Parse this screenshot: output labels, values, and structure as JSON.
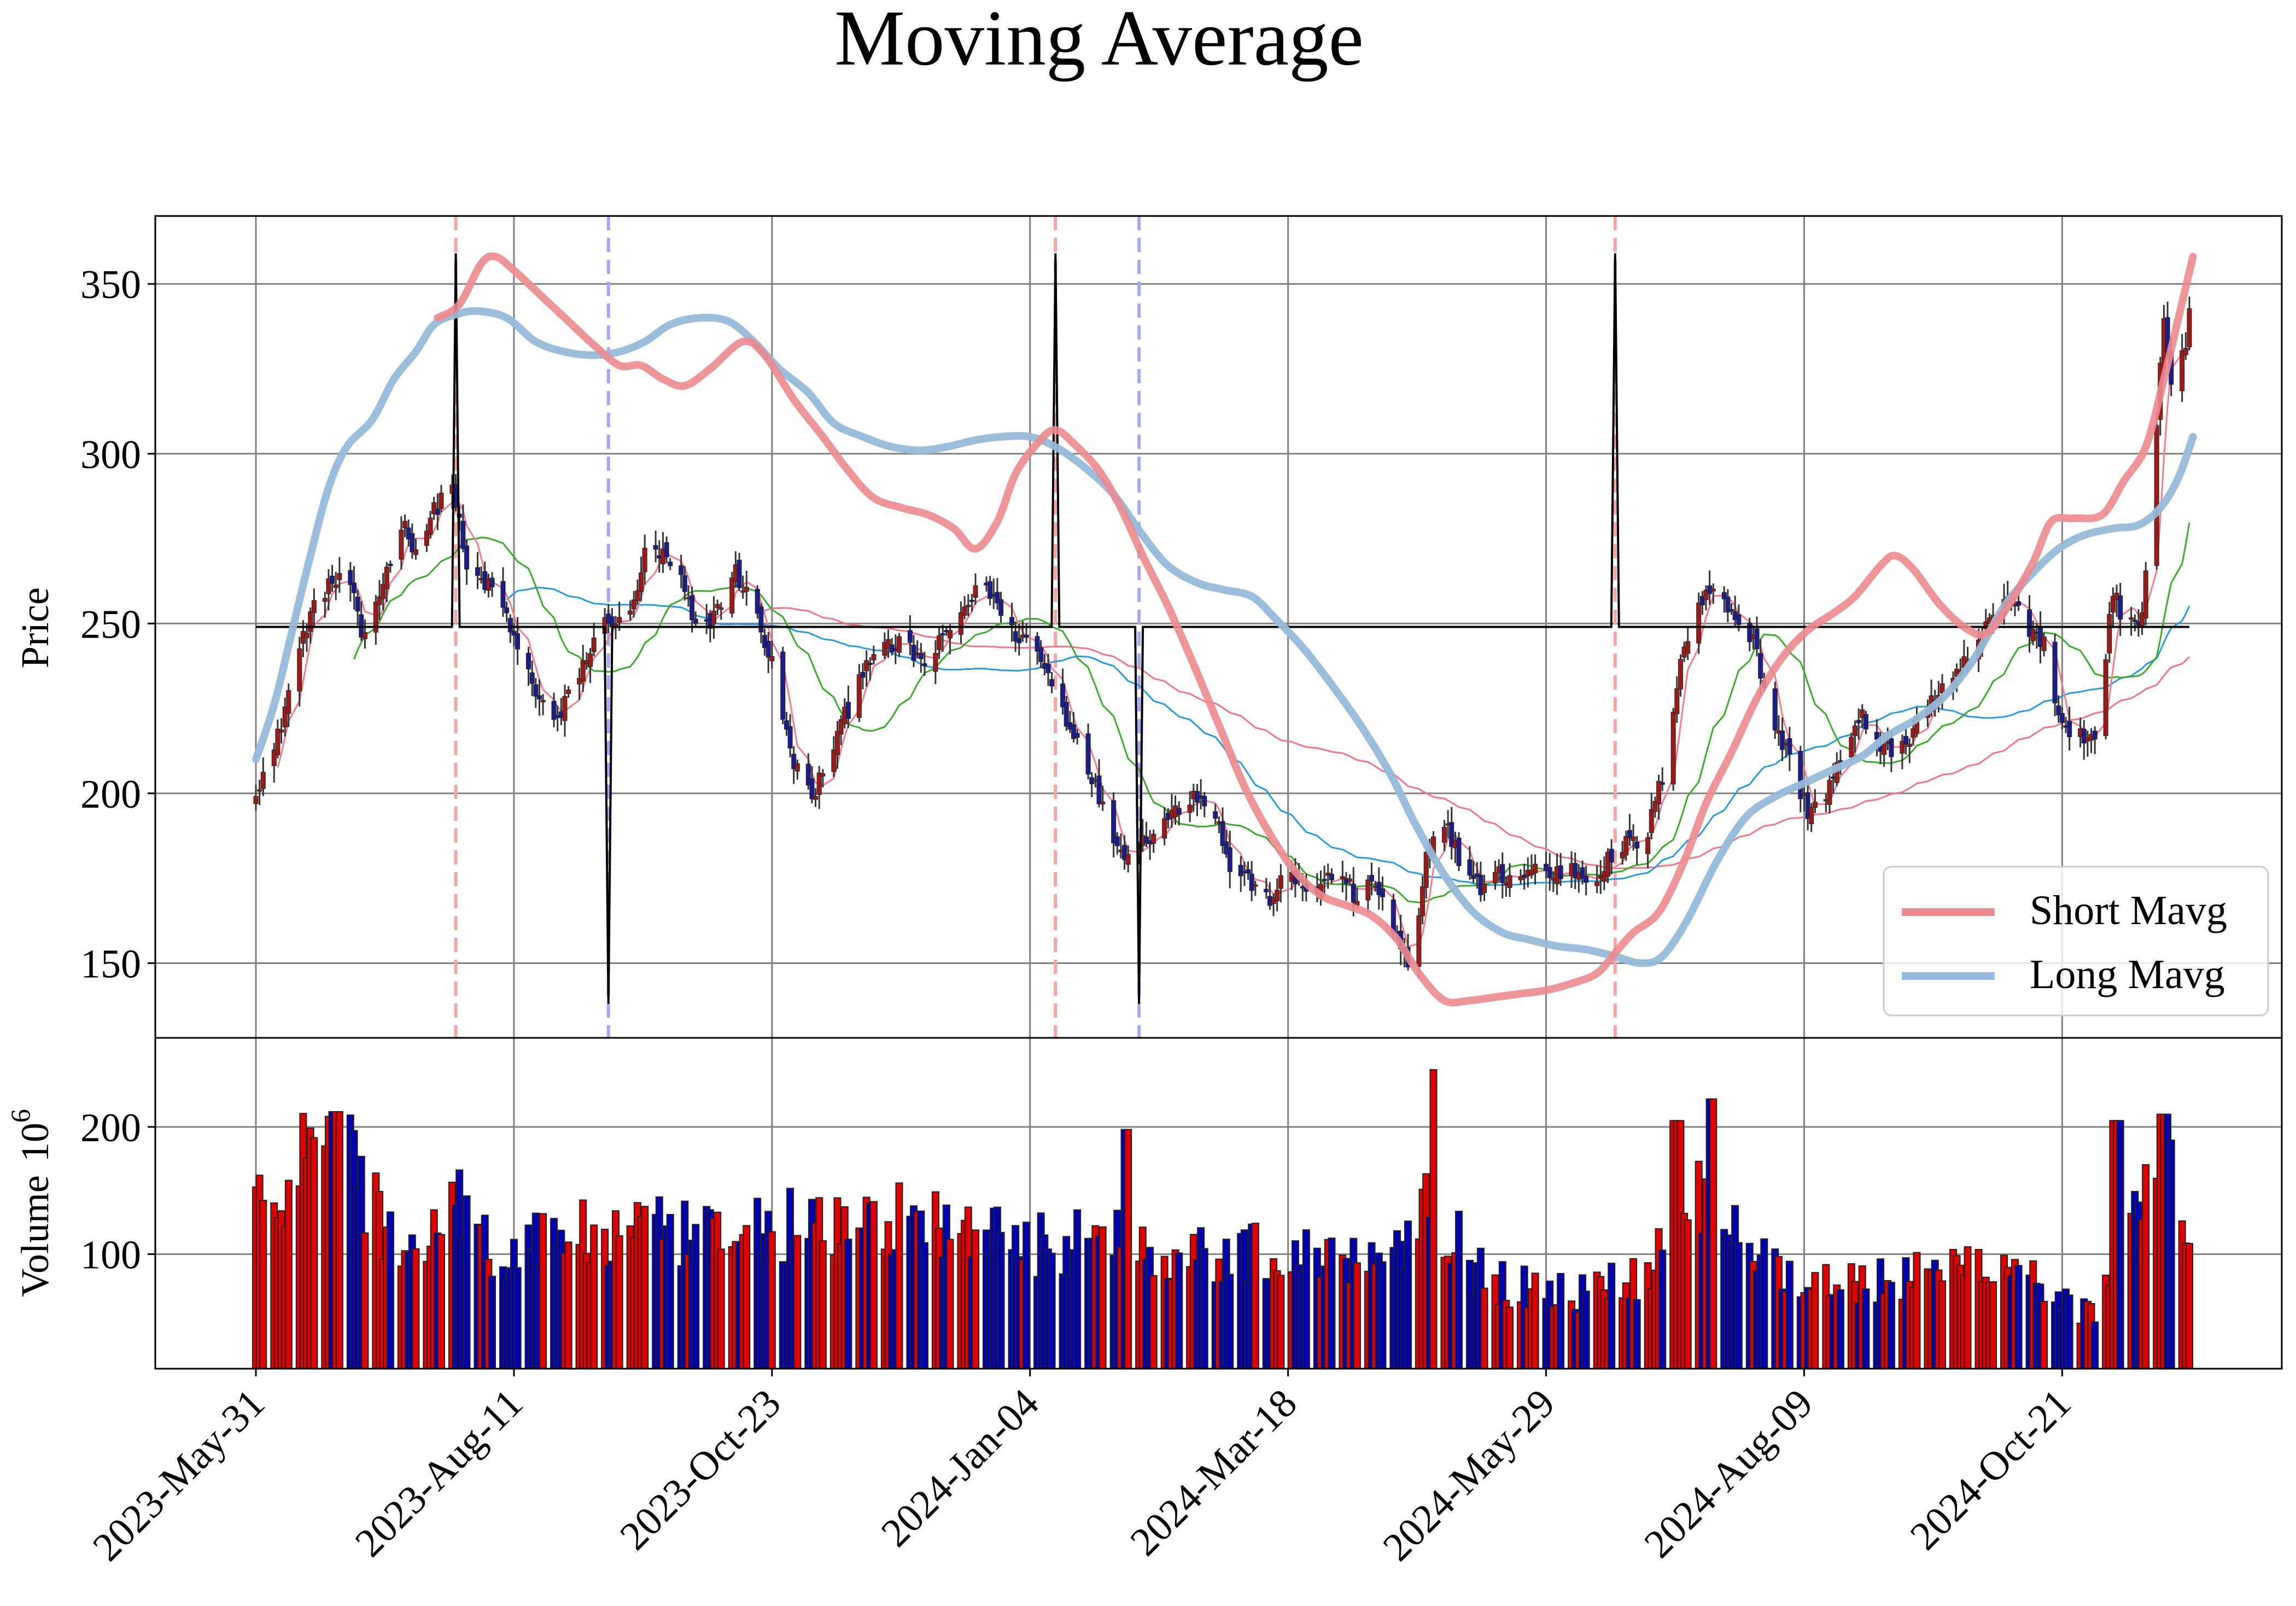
{
  "chart_data": {
    "type": "candlestick",
    "title": "Moving Average",
    "price_panel": {
      "ylabel": "Price",
      "ylim": [
        128,
        370
      ],
      "yticks": [
        150,
        200,
        250,
        300,
        350
      ],
      "grid": true,
      "legend": {
        "position": "lower-right",
        "entries": [
          "Short Mavg",
          "Long Mavg"
        ]
      }
    },
    "volume_panel": {
      "ylabel": "Volume",
      "exponent_label": "10",
      "exponent_power": "6",
      "ylim": [
        10,
        270
      ],
      "yticks": [
        100,
        200
      ],
      "grid": true
    },
    "x_axis": {
      "start_date": "2023-05-31",
      "end_date": "2024-11-13",
      "tick_labels": [
        "2023-May-31",
        "2023-Aug-11",
        "2023-Oct-23",
        "2024-Jan-04",
        "2024-Mar-18",
        "2024-May-29",
        "2024-Aug-09",
        "2024-Oct-21"
      ]
    },
    "close_anchors": [
      [
        "2023-05-31",
        202
      ],
      [
        "2023-06-05",
        212
      ],
      [
        "2023-06-09",
        230
      ],
      [
        "2023-06-14",
        250
      ],
      [
        "2023-06-20",
        262
      ],
      [
        "2023-06-26",
        262
      ],
      [
        "2023-06-29",
        245
      ],
      [
        "2023-07-05",
        262
      ],
      [
        "2023-07-10",
        280
      ],
      [
        "2023-07-14",
        272
      ],
      [
        "2023-07-20",
        285
      ],
      [
        "2023-07-24",
        292
      ],
      [
        "2023-07-28",
        265
      ],
      [
        "2023-08-02",
        262
      ],
      [
        "2023-08-07",
        255
      ],
      [
        "2023-08-11",
        242
      ],
      [
        "2023-08-17",
        228
      ],
      [
        "2023-08-22",
        220
      ],
      [
        "2023-08-26",
        232
      ],
      [
        "2023-08-31",
        242
      ],
      [
        "2023-09-05",
        252
      ],
      [
        "2023-09-10",
        248
      ],
      [
        "2023-09-15",
        270
      ],
      [
        "2023-09-20",
        270
      ],
      [
        "2023-09-25",
        262
      ],
      [
        "2023-09-30",
        245
      ],
      [
        "2023-10-05",
        255
      ],
      [
        "2023-10-10",
        265
      ],
      [
        "2023-10-15",
        255
      ],
      [
        "2023-10-20",
        238
      ],
      [
        "2023-10-25",
        212
      ],
      [
        "2023-10-31",
        198
      ],
      [
        "2023-11-05",
        212
      ],
      [
        "2023-11-10",
        225
      ],
      [
        "2023-11-15",
        240
      ],
      [
        "2023-11-20",
        242
      ],
      [
        "2023-11-25",
        244
      ],
      [
        "2023-12-01",
        238
      ],
      [
        "2023-12-06",
        245
      ],
      [
        "2023-12-12",
        255
      ],
      [
        "2023-12-18",
        262
      ],
      [
        "2023-12-24",
        248
      ],
      [
        "2023-12-30",
        245
      ],
      [
        "2024-01-04",
        235
      ],
      [
        "2024-01-09",
        222
      ],
      [
        "2024-01-14",
        212
      ],
      [
        "2024-01-19",
        195
      ],
      [
        "2024-01-24",
        183
      ],
      [
        "2024-01-29",
        185
      ],
      [
        "2024-02-03",
        190
      ],
      [
        "2024-02-08",
        195
      ],
      [
        "2024-02-13",
        200
      ],
      [
        "2024-02-18",
        198
      ],
      [
        "2024-02-23",
        178
      ],
      [
        "2024-02-28",
        175
      ],
      [
        "2024-03-04",
        168
      ],
      [
        "2024-03-09",
        175
      ],
      [
        "2024-03-14",
        173
      ],
      [
        "2024-03-19",
        172
      ],
      [
        "2024-03-24",
        178
      ],
      [
        "2024-03-29",
        168
      ],
      [
        "2024-04-03",
        174
      ],
      [
        "2024-04-08",
        160
      ],
      [
        "2024-04-13",
        145
      ],
      [
        "2024-04-17",
        180
      ],
      [
        "2024-04-22",
        193
      ],
      [
        "2024-04-27",
        178
      ],
      [
        "2024-05-02",
        172
      ],
      [
        "2024-05-07",
        176
      ],
      [
        "2024-05-12",
        175
      ],
      [
        "2024-05-17",
        178
      ],
      [
        "2024-05-22",
        176
      ],
      [
        "2024-05-27",
        178
      ],
      [
        "2024-06-01",
        174
      ],
      [
        "2024-06-06",
        180
      ],
      [
        "2024-06-11",
        185
      ],
      [
        "2024-06-16",
        185
      ],
      [
        "2024-06-21",
        205
      ],
      [
        "2024-06-26",
        240
      ],
      [
        "2024-07-01",
        255
      ],
      [
        "2024-07-06",
        262
      ],
      [
        "2024-07-11",
        252
      ],
      [
        "2024-07-16",
        245
      ],
      [
        "2024-07-21",
        222
      ],
      [
        "2024-07-26",
        210
      ],
      [
        "2024-07-31",
        195
      ],
      [
        "2024-08-05",
        200
      ],
      [
        "2024-08-10",
        212
      ],
      [
        "2024-08-15",
        222
      ],
      [
        "2024-08-20",
        215
      ],
      [
        "2024-08-25",
        210
      ],
      [
        "2024-08-30",
        222
      ],
      [
        "2024-09-04",
        228
      ],
      [
        "2024-09-09",
        232
      ],
      [
        "2024-09-14",
        242
      ],
      [
        "2024-09-19",
        250
      ],
      [
        "2024-09-24",
        258
      ],
      [
        "2024-09-29",
        250
      ],
      [
        "2024-10-04",
        245
      ],
      [
        "2024-10-08",
        222
      ],
      [
        "2024-10-13",
        218
      ],
      [
        "2024-10-18",
        215
      ],
      [
        "2024-10-23",
        260
      ],
      [
        "2024-10-27",
        248
      ],
      [
        "2024-10-31",
        252
      ],
      [
        "2024-11-03",
        295
      ],
      [
        "2024-11-06",
        340
      ],
      [
        "2024-11-09",
        315
      ],
      [
        "2024-11-13",
        340
      ]
    ],
    "volume_anchors": [
      [
        "2023-05-31",
        150
      ],
      [
        "2023-06-14",
        170
      ],
      [
        "2023-06-22",
        205
      ],
      [
        "2023-07-05",
        118
      ],
      [
        "2023-07-12",
        100
      ],
      [
        "2023-07-24",
        150
      ],
      [
        "2023-08-06",
        95
      ],
      [
        "2023-08-20",
        118
      ],
      [
        "2023-09-05",
        112
      ],
      [
        "2023-09-20",
        118
      ],
      [
        "2023-10-05",
        108
      ],
      [
        "2023-10-20",
        125
      ],
      [
        "2023-11-05",
        118
      ],
      [
        "2023-11-25",
        130
      ],
      [
        "2023-12-12",
        115
      ],
      [
        "2024-01-04",
        108
      ],
      [
        "2024-01-20",
        115
      ],
      [
        "2024-02-10",
        100
      ],
      [
        "2024-03-05",
        100
      ],
      [
        "2024-03-25",
        98
      ],
      [
        "2024-04-10",
        112
      ],
      [
        "2024-04-18",
        150
      ],
      [
        "2024-05-01",
        85
      ],
      [
        "2024-05-20",
        68
      ],
      [
        "2024-06-04",
        72
      ],
      [
        "2024-06-18",
        90
      ],
      [
        "2024-06-28",
        158
      ],
      [
        "2024-07-12",
        125
      ],
      [
        "2024-07-25",
        82
      ],
      [
        "2024-08-10",
        78
      ],
      [
        "2024-08-25",
        78
      ],
      [
        "2024-09-15",
        95
      ],
      [
        "2024-09-30",
        90
      ],
      [
        "2024-10-12",
        55
      ],
      [
        "2024-10-20",
        60
      ],
      [
        "2024-10-27",
        125
      ],
      [
        "2024-11-03",
        150
      ],
      [
        "2024-11-07",
        180
      ],
      [
        "2024-11-13",
        90
      ]
    ],
    "volume_spikes": [
      [
        "2023-06-22",
        212
      ],
      [
        "2024-01-26",
        198
      ],
      [
        "2024-04-20",
        245
      ],
      [
        "2024-06-25",
        205
      ],
      [
        "2024-07-05",
        222
      ],
      [
        "2024-10-24",
        205
      ],
      [
        "2024-11-06",
        210
      ]
    ],
    "signal_line": {
      "baseline": 249,
      "up_spike": 359,
      "down_spike": 138
    },
    "crossovers": [
      {
        "date": "2023-07-25",
        "kind": "sell",
        "color": "#f4a6a6"
      },
      {
        "date": "2023-09-05",
        "kind": "buy",
        "color": "#a6a6f4"
      },
      {
        "date": "2024-01-06",
        "kind": "sell",
        "color": "#f4a6a6"
      },
      {
        "date": "2024-01-29",
        "kind": "buy",
        "color": "#a6a6f4"
      },
      {
        "date": "2024-06-08",
        "kind": "sell",
        "color": "#f4a6a6"
      }
    ],
    "short_mavg_anchors": [
      [
        "2023-07-20",
        340
      ],
      [
        "2023-07-26",
        344
      ],
      [
        "2023-08-01",
        356
      ],
      [
        "2023-08-05",
        358
      ],
      [
        "2023-08-10",
        354
      ],
      [
        "2023-08-18",
        346
      ],
      [
        "2023-08-24",
        340
      ],
      [
        "2023-09-01",
        332
      ],
      [
        "2023-09-08",
        326
      ],
      [
        "2023-09-14",
        326
      ],
      [
        "2023-09-20",
        322
      ],
      [
        "2023-09-26",
        320
      ],
      [
        "2023-10-03",
        325
      ],
      [
        "2023-10-12",
        333
      ],
      [
        "2023-10-18",
        329
      ],
      [
        "2023-10-26",
        316
      ],
      [
        "2023-11-03",
        305
      ],
      [
        "2023-11-10",
        295
      ],
      [
        "2023-11-17",
        287
      ],
      [
        "2023-11-25",
        284
      ],
      [
        "2023-12-02",
        282
      ],
      [
        "2023-12-09",
        278
      ],
      [
        "2023-12-15",
        272
      ],
      [
        "2023-12-21",
        280
      ],
      [
        "2023-12-26",
        294
      ],
      [
        "2024-01-01",
        303
      ],
      [
        "2024-01-06",
        307
      ],
      [
        "2024-01-12",
        302
      ],
      [
        "2024-01-18",
        295
      ],
      [
        "2024-01-24",
        284
      ],
      [
        "2024-01-30",
        270
      ],
      [
        "2024-02-06",
        255
      ],
      [
        "2024-02-13",
        238
      ],
      [
        "2024-02-20",
        220
      ],
      [
        "2024-02-27",
        202
      ],
      [
        "2024-03-05",
        188
      ],
      [
        "2024-03-12",
        177
      ],
      [
        "2024-03-19",
        170
      ],
      [
        "2024-03-26",
        167
      ],
      [
        "2024-04-02",
        164
      ],
      [
        "2024-04-09",
        157
      ],
      [
        "2024-04-15",
        147
      ],
      [
        "2024-04-22",
        139
      ],
      [
        "2024-04-29",
        139
      ],
      [
        "2024-05-06",
        140
      ],
      [
        "2024-05-13",
        141
      ],
      [
        "2024-05-20",
        142
      ],
      [
        "2024-05-27",
        144
      ],
      [
        "2024-06-03",
        147
      ],
      [
        "2024-06-08",
        153
      ],
      [
        "2024-06-13",
        159
      ],
      [
        "2024-06-20",
        165
      ],
      [
        "2024-06-27",
        180
      ],
      [
        "2024-07-03",
        197
      ],
      [
        "2024-07-10",
        212
      ],
      [
        "2024-07-17",
        228
      ],
      [
        "2024-07-24",
        240
      ],
      [
        "2024-07-31",
        248
      ],
      [
        "2024-08-07",
        253
      ],
      [
        "2024-08-13",
        258
      ],
      [
        "2024-08-20",
        267
      ],
      [
        "2024-08-24",
        270
      ],
      [
        "2024-08-29",
        266
      ],
      [
        "2024-09-05",
        256
      ],
      [
        "2024-09-12",
        249
      ],
      [
        "2024-09-18",
        247
      ],
      [
        "2024-09-24",
        255
      ],
      [
        "2024-10-01",
        268
      ],
      [
        "2024-10-06",
        280
      ],
      [
        "2024-10-12",
        281
      ],
      [
        "2024-10-20",
        282
      ],
      [
        "2024-10-26",
        292
      ],
      [
        "2024-11-01",
        302
      ],
      [
        "2024-11-06",
        322
      ],
      [
        "2024-11-10",
        340
      ],
      [
        "2024-11-14",
        358
      ]
    ],
    "long_mavg_anchors": [
      [
        "2023-05-31",
        210
      ],
      [
        "2023-06-05",
        226
      ],
      [
        "2023-06-10",
        248
      ],
      [
        "2023-06-15",
        270
      ],
      [
        "2023-06-20",
        290
      ],
      [
        "2023-06-25",
        302
      ],
      [
        "2023-07-02",
        310
      ],
      [
        "2023-07-08",
        322
      ],
      [
        "2023-07-14",
        330
      ],
      [
        "2023-07-19",
        338
      ],
      [
        "2023-07-25",
        341
      ],
      [
        "2023-07-31",
        342
      ],
      [
        "2023-08-08",
        340
      ],
      [
        "2023-08-16",
        333
      ],
      [
        "2023-08-24",
        330
      ],
      [
        "2023-09-01",
        329
      ],
      [
        "2023-09-08",
        330
      ],
      [
        "2023-09-15",
        333
      ],
      [
        "2023-09-22",
        338
      ],
      [
        "2023-09-30",
        340
      ],
      [
        "2023-10-08",
        339
      ],
      [
        "2023-10-15",
        333
      ],
      [
        "2023-10-22",
        325
      ],
      [
        "2023-10-30",
        318
      ],
      [
        "2023-11-06",
        309
      ],
      [
        "2023-11-14",
        305
      ],
      [
        "2023-11-22",
        302
      ],
      [
        "2023-11-30",
        301
      ],
      [
        "2023-12-07",
        302
      ],
      [
        "2023-12-15",
        304
      ],
      [
        "2023-12-22",
        305
      ],
      [
        "2023-12-30",
        305
      ],
      [
        "2024-01-06",
        302
      ],
      [
        "2024-01-14",
        296
      ],
      [
        "2024-01-22",
        288
      ],
      [
        "2024-01-30",
        276
      ],
      [
        "2024-02-06",
        267
      ],
      [
        "2024-02-14",
        262
      ],
      [
        "2024-02-21",
        260
      ],
      [
        "2024-02-29",
        258
      ],
      [
        "2024-03-06",
        252
      ],
      [
        "2024-03-14",
        243
      ],
      [
        "2024-03-22",
        232
      ],
      [
        "2024-03-30",
        220
      ],
      [
        "2024-04-07",
        206
      ],
      [
        "2024-04-14",
        191
      ],
      [
        "2024-04-22",
        176
      ],
      [
        "2024-04-30",
        165
      ],
      [
        "2024-05-08",
        159
      ],
      [
        "2024-05-15",
        157
      ],
      [
        "2024-05-23",
        155
      ],
      [
        "2024-05-31",
        154
      ],
      [
        "2024-06-08",
        152
      ],
      [
        "2024-06-15",
        150
      ],
      [
        "2024-06-21",
        152
      ],
      [
        "2024-06-28",
        163
      ],
      [
        "2024-07-06",
        180
      ],
      [
        "2024-07-14",
        193
      ],
      [
        "2024-07-22",
        199
      ],
      [
        "2024-07-30",
        203
      ],
      [
        "2024-08-07",
        207
      ],
      [
        "2024-08-15",
        211
      ],
      [
        "2024-08-22",
        217
      ],
      [
        "2024-08-30",
        222
      ],
      [
        "2024-09-07",
        229
      ],
      [
        "2024-09-15",
        240
      ],
      [
        "2024-09-23",
        255
      ],
      [
        "2024-10-01",
        265
      ],
      [
        "2024-10-08",
        272
      ],
      [
        "2024-10-15",
        276
      ],
      [
        "2024-10-23",
        278
      ],
      [
        "2024-10-30",
        279
      ],
      [
        "2024-11-05",
        284
      ],
      [
        "2024-11-10",
        293
      ],
      [
        "2024-11-14",
        305
      ]
    ],
    "series_colors": {
      "short_mavg": "#ec8a8f",
      "long_mavg": "#95b9d9",
      "ma_fast": "#f47c8f",
      "ma_medium": "#3daa2f",
      "ma_slow": "#2a9ae0",
      "ma_longest": "#f0758a",
      "signal": "#000000",
      "up_volume": "#e00000",
      "down_volume": "#0000b0"
    },
    "sample_every_days": 1
  }
}
